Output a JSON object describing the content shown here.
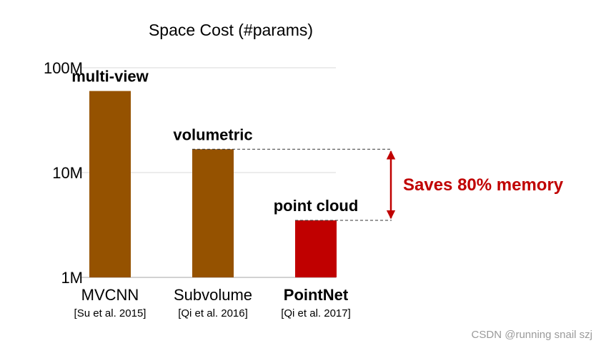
{
  "chart_data": {
    "type": "bar",
    "title": "Space Cost (#params)",
    "xlabel": "",
    "ylabel": "",
    "y_scale": "log",
    "ylim": [
      1000000,
      100000000
    ],
    "yticks": [
      {
        "value": 1000000,
        "label": "1M"
      },
      {
        "value": 10000000,
        "label": "10M"
      },
      {
        "value": 100000000,
        "label": "100M"
      }
    ],
    "grid": true,
    "categories": [
      {
        "name": "MVCNN",
        "ref": "[Su et al. 2015]",
        "bold": false
      },
      {
        "name": "Subvolume",
        "ref": "[Qi et al. 2016]",
        "bold": false
      },
      {
        "name": "PointNet",
        "ref": "[Qi et al. 2017]",
        "bold": true
      }
    ],
    "values": [
      60000000,
      16700000,
      3500000
    ],
    "bar_labels": [
      "multi-view",
      "volumetric",
      "point cloud"
    ],
    "bar_colors": [
      "#955200",
      "#955200",
      "#c00000"
    ],
    "annotation": {
      "text": "Saves 80% memory",
      "color": "#c00000",
      "from_bar": 1,
      "to_bar": 2
    }
  },
  "watermark": "CSDN @running snail szj"
}
